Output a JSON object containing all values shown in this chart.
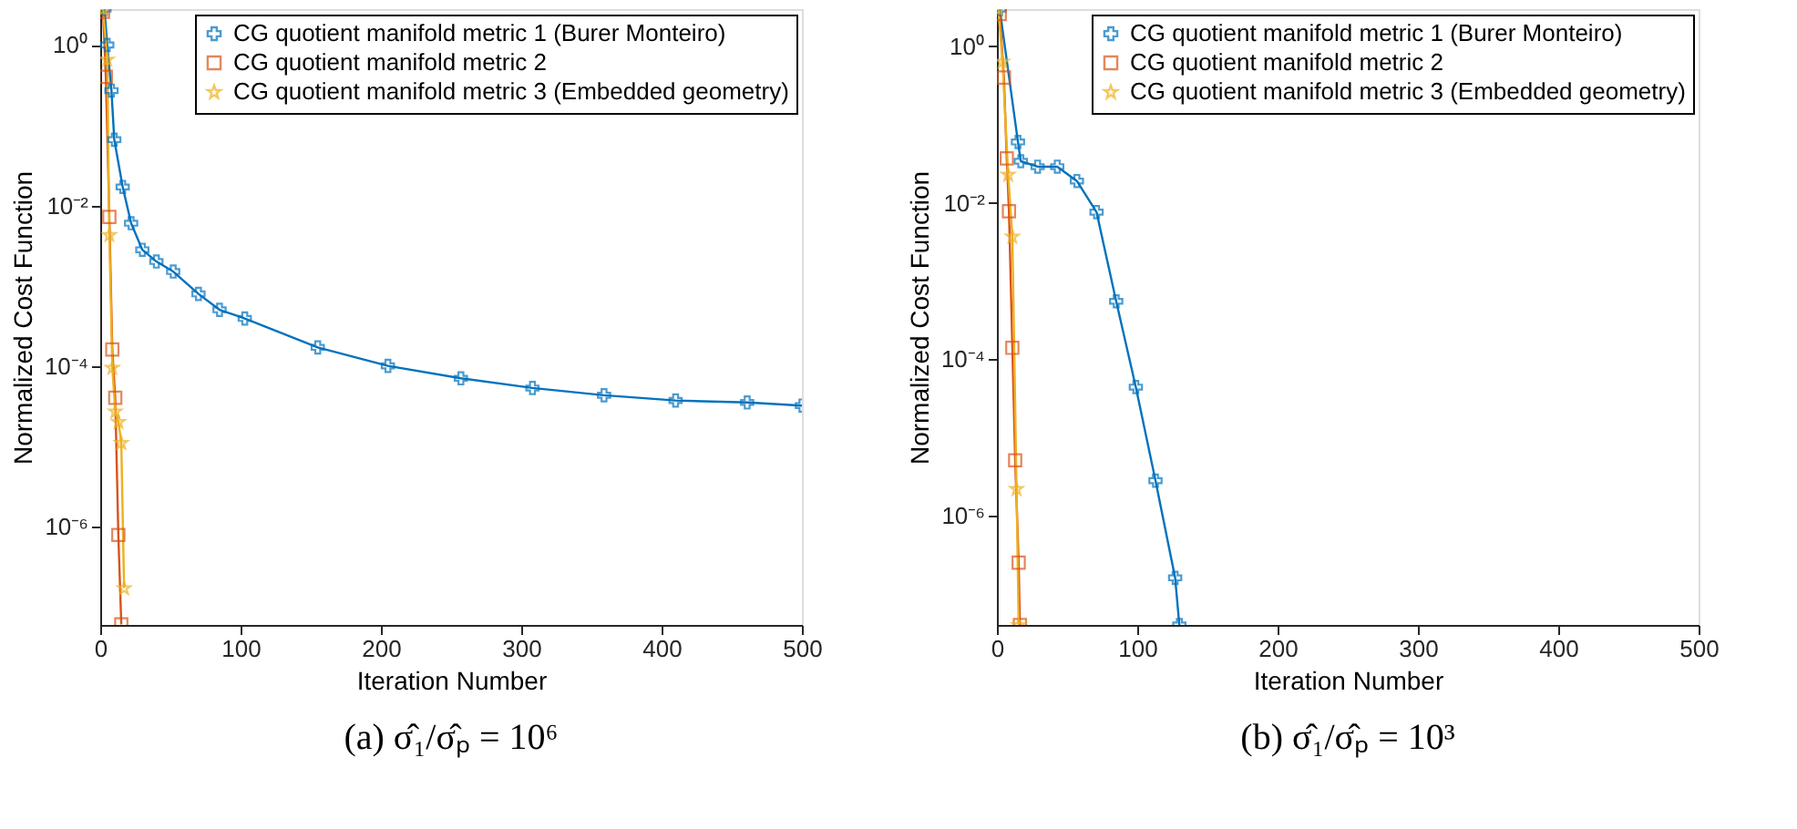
{
  "chart_data": [
    {
      "type": "line",
      "title": "(a) σ̂₁/σ̂ₚ = 10⁶",
      "xlabel": "Iteration Number",
      "ylabel": "Normalized Cost Function",
      "log": "y",
      "grid": false,
      "legend": "top right",
      "xlim": [
        0,
        500
      ],
      "xticks": [
        0,
        100,
        200,
        300,
        400,
        500
      ],
      "ylim": [
        5.9e-08,
        2.8
      ],
      "yticks": [
        {
          "value": 1,
          "label": "10⁰"
        },
        {
          "value": 0.01,
          "label": "10⁻²"
        },
        {
          "value": 0.0001,
          "label": "10⁻⁴"
        },
        {
          "value": 1e-06,
          "label": "10⁻⁶"
        }
      ],
      "series": [
        {
          "name": "CG quotient manifold metric 1 (Burer Monteiro)",
          "color": "#0072bd",
          "marker": "cross",
          "x": [
            3,
            5,
            8,
            10,
            16,
            22,
            30,
            40,
            52,
            70,
            85,
            103,
            155,
            205,
            257,
            308,
            359,
            410,
            461,
            500
          ],
          "values": [
            2.8,
            1,
            0.27,
            0.066,
            0.017,
            0.006,
            0.0028,
            0.002,
            0.0015,
            0.00079,
            0.0005,
            0.00039,
            0.00017,
            0.0001,
            7e-05,
            5.3e-05,
            4.3e-05,
            3.7e-05,
            3.5e-05,
            3.2e-05
          ]
        },
        {
          "name": "CG quotient manifold metric 2",
          "color": "#d95319",
          "marker": "square",
          "x": [
            2,
            4,
            6.5,
            8.6,
            10.7,
            12.9,
            15
          ],
          "values": [
            2.6,
            0.4,
            0.0072,
            0.00016,
            4e-05,
            7.8e-07,
            6e-08
          ]
        },
        {
          "name": "CG quotient manifold metric 3 (Embedded geometry)",
          "color": "#edb120",
          "marker": "star",
          "x": [
            2,
            5,
            6.5,
            8.6,
            10.7,
            13,
            15,
            17
          ],
          "values": [
            2.8,
            0.66,
            0.0043,
            9.5e-05,
            2.7e-05,
            2e-05,
            1.1e-05,
            1.7e-07
          ]
        }
      ]
    },
    {
      "type": "line",
      "title": "(b) σ̂₁/σ̂ₚ = 10³",
      "xlabel": "Iteration Number",
      "ylabel": "Normalized Cost Function",
      "log": "y",
      "grid": false,
      "legend": "top right",
      "xlim": [
        0,
        500
      ],
      "xticks": [
        0,
        100,
        200,
        300,
        400,
        500
      ],
      "ylim": [
        4e-08,
        3
      ],
      "yticks": [
        {
          "value": 1,
          "label": "10⁰"
        },
        {
          "value": 0.01,
          "label": "10⁻²"
        },
        {
          "value": 0.0001,
          "label": "10⁻⁴"
        },
        {
          "value": 1e-06,
          "label": "10⁻⁶"
        }
      ],
      "series": [
        {
          "name": "CG quotient manifold metric 1 (Burer Monteiro)",
          "color": "#0072bd",
          "marker": "cross",
          "x": [
            2,
            15,
            17,
            29,
            43,
            57,
            71,
            85,
            99,
            113,
            127,
            130
          ],
          "values": [
            3,
            0.06,
            0.034,
            0.029,
            0.029,
            0.019,
            0.0076,
            0.00055,
            4.4e-05,
            2.8e-06,
            1.6e-07,
            4e-08
          ]
        },
        {
          "name": "CG quotient manifold metric 2",
          "color": "#d95319",
          "marker": "square",
          "x": [
            2,
            5,
            7,
            8.6,
            11,
            13,
            15.5,
            16.4
          ],
          "values": [
            2.6,
            0.4,
            0.037,
            0.0078,
            0.00014,
            5.1e-06,
            2.5e-07,
            4e-08
          ]
        },
        {
          "name": "CG quotient manifold metric 3 (Embedded geometry)",
          "color": "#edb120",
          "marker": "star",
          "x": [
            1,
            4,
            8,
            11,
            14,
            15.5
          ],
          "values": [
            3,
            0.64,
            0.023,
            0.0037,
            2.2e-06,
            4e-08
          ]
        }
      ]
    }
  ]
}
